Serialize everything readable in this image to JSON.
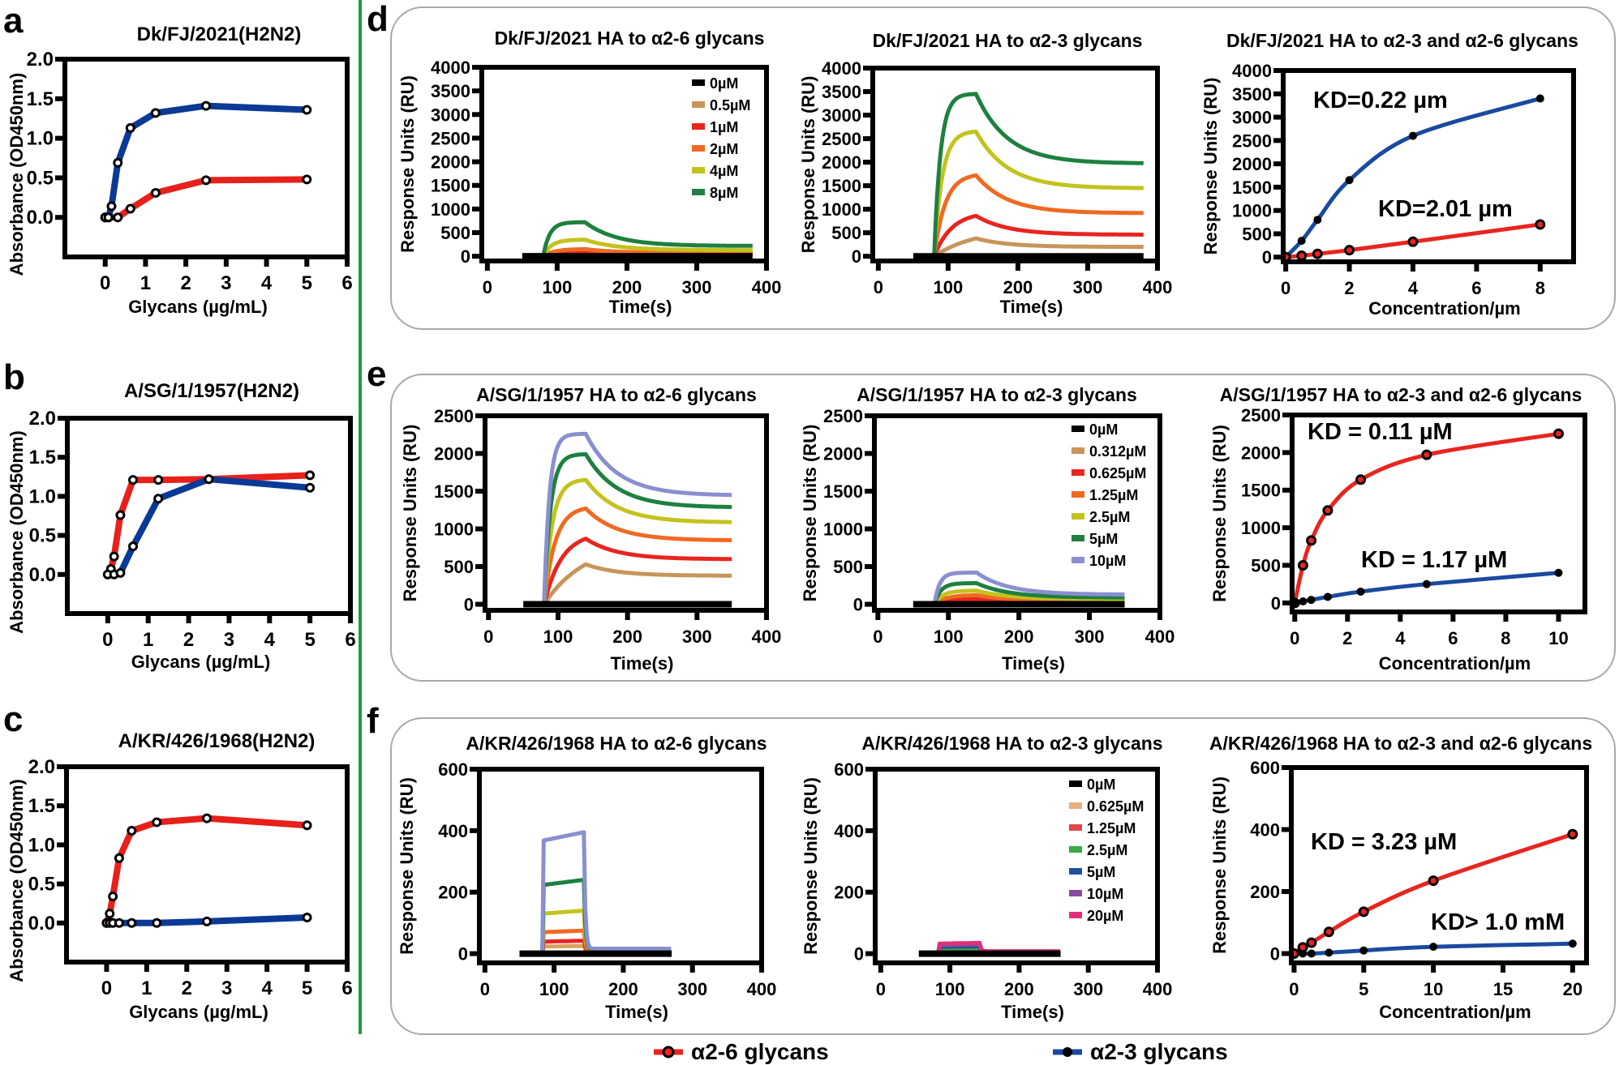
{
  "panel_labels": {
    "a": "a",
    "b": "b",
    "c": "c",
    "d": "d",
    "e": "e",
    "f": "f"
  },
  "legend": {
    "items": [
      {
        "label": "α2-6 glycans",
        "color": "#e8251f"
      },
      {
        "label": "α2-3 glycans",
        "color": "#1a4aa0"
      }
    ]
  },
  "chart_data": [
    {
      "panel": "a",
      "type": "line",
      "title": "Dk/FJ/2021(H2N2)",
      "xlabel": "Glycans (µg/mL)",
      "ylabel": "Absorbance (OD450nm)",
      "xlim": [
        -1,
        6
      ],
      "ylim": [
        -0.5,
        2.0
      ],
      "xticks": [
        "0",
        "1",
        "2",
        "3",
        "4",
        "5",
        "6"
      ],
      "yticks": [
        "0.0",
        "0.5",
        "1.0",
        "1.5",
        "2.0"
      ],
      "series": [
        {
          "glycan": "α2-6",
          "color": "#e8201c",
          "marker": "open",
          "x": [
            0,
            0.078,
            0.3125,
            0.625,
            1.25,
            2.5,
            5
          ],
          "y": [
            0,
            0,
            0,
            0.11,
            0.31,
            0.47,
            0.48
          ]
        },
        {
          "glycan": "α2-3",
          "color": "#0a3a96",
          "marker": "open",
          "x": [
            0,
            0.078,
            0.156,
            0.3125,
            0.625,
            1.25,
            2.5,
            5
          ],
          "y": [
            0,
            0,
            0.14,
            0.69,
            1.13,
            1.32,
            1.41,
            1.36
          ]
        }
      ]
    },
    {
      "panel": "b",
      "type": "line",
      "title": "A/SG/1/1957(H2N2)",
      "xlabel": "Glycans (µg/mL)",
      "ylabel": "Absorbance (OD450nm)",
      "xlim": [
        -1,
        6
      ],
      "ylim": [
        -0.5,
        2.0
      ],
      "xticks": [
        "0",
        "1",
        "2",
        "3",
        "4",
        "5",
        "6"
      ],
      "yticks": [
        "0.0",
        "0.5",
        "1.0",
        "1.5",
        "2.0"
      ],
      "series": [
        {
          "glycan": "α2-6",
          "color": "#e8201c",
          "marker": "open",
          "x": [
            0,
            0.078,
            0.156,
            0.3125,
            0.625,
            1.25,
            2.5,
            5
          ],
          "y": [
            0,
            0.07,
            0.23,
            0.76,
            1.21,
            1.21,
            1.22,
            1.27
          ]
        },
        {
          "glycan": "α2-3",
          "color": "#0a3a96",
          "marker": "open",
          "x": [
            0,
            0.156,
            0.3125,
            0.625,
            1.25,
            2.5,
            5
          ],
          "y": [
            0,
            0,
            0.02,
            0.36,
            0.97,
            1.22,
            1.11
          ]
        }
      ]
    },
    {
      "panel": "c",
      "type": "line",
      "title": "A/KR/426/1968(H2N2)",
      "xlabel": "Glycans (µg/mL)",
      "ylabel": "Absorbance (OD450nm)",
      "xlim": [
        -1,
        6
      ],
      "ylim": [
        -0.5,
        2.0
      ],
      "xticks": [
        "0",
        "1",
        "2",
        "3",
        "4",
        "5",
        "6"
      ],
      "yticks": [
        "0.0",
        "0.5",
        "1.0",
        "1.5",
        "2.0"
      ],
      "series": [
        {
          "glycan": "α2-6",
          "color": "#e8201c",
          "marker": "open",
          "x": [
            0,
            0.078,
            0.156,
            0.3125,
            0.625,
            1.25,
            2.5,
            5
          ],
          "y": [
            0,
            0.12,
            0.34,
            0.83,
            1.18,
            1.29,
            1.34,
            1.25
          ]
        },
        {
          "glycan": "α2-3",
          "color": "#0a3a96",
          "marker": "open",
          "x": [
            0,
            0.078,
            0.156,
            0.3125,
            0.625,
            1.25,
            2.5,
            5
          ],
          "y": [
            0,
            0,
            0,
            0,
            0,
            0,
            0.02,
            0.07
          ]
        }
      ]
    },
    {
      "panel": "d",
      "type": "line",
      "title": "Dk/FJ/2021 HA to α2-6 glycans",
      "xlabel": "Time(s)",
      "ylabel": "Response Units (RU)",
      "xlim": [
        -8,
        400
      ],
      "ylim": [
        -100,
        4000
      ],
      "xticks": [
        "0",
        "100",
        "200",
        "300",
        "400"
      ],
      "yticks": [
        "0",
        "500",
        "1000",
        "1500",
        "2000",
        "2500",
        "3000",
        "3500",
        "4000"
      ],
      "baseline_start_s": 50,
      "injection_start_s": 80,
      "injection_end_s": 140,
      "end_s": 380,
      "kinetics": "exponential",
      "series": [
        {
          "name": "0µM",
          "color": "#000000",
          "peak_RU": 0,
          "final_RU": 0
        },
        {
          "name": "0.5µM",
          "color": "#c8955a",
          "peak_RU": 60,
          "final_RU": 30
        },
        {
          "name": "1µM",
          "color": "#e8251f",
          "peak_RU": 100,
          "final_RU": 50
        },
        {
          "name": "2µM",
          "color": "#f06a22",
          "peak_RU": 150,
          "final_RU": 70
        },
        {
          "name": "4µM",
          "color": "#c4c21e",
          "peak_RU": 350,
          "final_RU": 130
        },
        {
          "name": "8µM",
          "color": "#1e8040",
          "peak_RU": 720,
          "final_RU": 220
        }
      ]
    },
    {
      "panel": "d",
      "type": "line",
      "title": "Dk/FJ/2021 HA to α2-3 glycans",
      "xlabel": "Time(s)",
      "ylabel": "Response Units (RU)",
      "xlim": [
        -8,
        400
      ],
      "ylim": [
        -100,
        4000
      ],
      "xticks": [
        "0",
        "100",
        "200",
        "300",
        "400"
      ],
      "yticks": [
        "0",
        "500",
        "1000",
        "1500",
        "2000",
        "2500",
        "3000",
        "3500",
        "4000"
      ],
      "baseline_start_s": 50,
      "injection_start_s": 80,
      "injection_end_s": 140,
      "end_s": 380,
      "kinetics": "exponential",
      "series": [
        {
          "color": "#000000",
          "peak_RU": 0,
          "final_RU": 0
        },
        {
          "color": "#c8955a",
          "peak_RU": 380,
          "final_RU": 200
        },
        {
          "color": "#e8251f",
          "peak_RU": 860,
          "final_RU": 460
        },
        {
          "color": "#f06a22",
          "peak_RU": 1720,
          "final_RU": 920
        },
        {
          "color": "#c4c21e",
          "peak_RU": 2650,
          "final_RU": 1450
        },
        {
          "color": "#1e8040",
          "peak_RU": 3450,
          "final_RU": 1980
        }
      ]
    },
    {
      "panel": "d",
      "type": "scatter",
      "title": "Dk/FJ/2021 HA to α2-3 and α2-6 glycans",
      "xlabel": "Concentration/µm",
      "ylabel": "Response Units (RU)",
      "xlim": [
        -0.08,
        9.05
      ],
      "ylim": [
        -100,
        4000
      ],
      "xticks": [
        "0",
        "2",
        "4",
        "6",
        "8"
      ],
      "yticks": [
        "0",
        "500",
        "1000",
        "1500",
        "2000",
        "2500",
        "3000",
        "3500",
        "4000"
      ],
      "series": [
        {
          "glycan": "α2-3",
          "color": "#1a4aa0",
          "marker": "filled",
          "x": [
            0,
            0.5,
            1,
            2,
            4,
            8
          ],
          "y": [
            0,
            350,
            800,
            1650,
            2600,
            3400
          ]
        },
        {
          "glycan": "α2-6",
          "color": "#e8251f",
          "marker": "open",
          "x": [
            0,
            0.5,
            1,
            2,
            4,
            8
          ],
          "y": [
            0,
            30,
            70,
            150,
            330,
            700
          ]
        }
      ],
      "annotations": [
        {
          "text": "KD=0.22 µm",
          "color": "#1a4aa0"
        },
        {
          "text": "KD=2.01 µm",
          "color": "#e8251f"
        }
      ]
    },
    {
      "panel": "e",
      "type": "line",
      "title": "A/SG/1/1957 HA to α2-6 glycans",
      "xlabel": "Time(s)",
      "ylabel": "Response Units (RU)",
      "xlim": [
        -5,
        400
      ],
      "ylim": [
        -80,
        2500
      ],
      "xticks": [
        "0",
        "100",
        "200",
        "300",
        "400"
      ],
      "yticks": [
        "0",
        "500",
        "1000",
        "1500",
        "2000",
        "2500"
      ],
      "baseline_start_s": 50,
      "injection_start_s": 80,
      "injection_end_s": 140,
      "end_s": 350,
      "kinetics": "exponential",
      "series": [
        {
          "color": "#000000",
          "peak_RU": 0,
          "final_RU": 0
        },
        {
          "color": "#c8955a",
          "peak_RU": 530,
          "final_RU": 380
        },
        {
          "color": "#e8251f",
          "peak_RU": 870,
          "final_RU": 600
        },
        {
          "color": "#f06a22",
          "peak_RU": 1270,
          "final_RU": 850
        },
        {
          "color": "#c4c21e",
          "peak_RU": 1650,
          "final_RU": 1090
        },
        {
          "color": "#1e8040",
          "peak_RU": 1990,
          "final_RU": 1290
        },
        {
          "color": "#8a8fd0",
          "peak_RU": 2260,
          "final_RU": 1450
        }
      ]
    },
    {
      "panel": "e",
      "type": "line",
      "title": "A/SG/1/1957 HA to α2-3 glycans",
      "xlabel": "Time(s)",
      "ylabel": "Response Units (RU)",
      "xlim": [
        -5,
        400
      ],
      "ylim": [
        -80,
        2500
      ],
      "xticks": [
        "0",
        "100",
        "200",
        "300",
        "400"
      ],
      "yticks": [
        "0",
        "500",
        "1000",
        "1500",
        "2000",
        "2500"
      ],
      "baseline_start_s": 50,
      "injection_start_s": 80,
      "injection_end_s": 140,
      "end_s": 350,
      "kinetics": "exponential",
      "series": [
        {
          "name": "0µM",
          "color": "#000000",
          "peak_RU": 0,
          "final_RU": 0
        },
        {
          "name": "0.312µM",
          "color": "#c8955a",
          "peak_RU": 40,
          "final_RU": 30
        },
        {
          "name": "0.625µM",
          "color": "#e8251f",
          "peak_RU": 70,
          "final_RU": 40
        },
        {
          "name": "1.25µM",
          "color": "#f06a22",
          "peak_RU": 120,
          "final_RU": 50
        },
        {
          "name": "2.5µM",
          "color": "#c4c21e",
          "peak_RU": 180,
          "final_RU": 70
        },
        {
          "name": "5µM",
          "color": "#1e8040",
          "peak_RU": 280,
          "final_RU": 90
        },
        {
          "name": "10µM",
          "color": "#8a8fd0",
          "peak_RU": 420,
          "final_RU": 130
        }
      ]
    },
    {
      "panel": "e",
      "type": "scatter",
      "title": "A/SG/1/1957 HA to α2-3 and α2-6 glycans",
      "xlabel": "Concentration/µm",
      "ylabel": "Response Units (RU)",
      "xlim": [
        -0.1,
        11
      ],
      "ylim": [
        -120,
        2500
      ],
      "xticks": [
        "0",
        "2",
        "4",
        "6",
        "8",
        "10"
      ],
      "yticks": [
        "0",
        "500",
        "1000",
        "1500",
        "2000",
        "2500"
      ],
      "series": [
        {
          "glycan": "α2-6",
          "color": "#e8251f",
          "marker": "open",
          "x": [
            0,
            0.3125,
            0.625,
            1.25,
            2.5,
            5,
            10
          ],
          "y": [
            0,
            500,
            830,
            1230,
            1640,
            1970,
            2250
          ]
        },
        {
          "glycan": "α2-3",
          "color": "#1a4aa0",
          "marker": "filled",
          "x": [
            0,
            0.3125,
            0.625,
            1.25,
            2.5,
            5,
            10
          ],
          "y": [
            0,
            20,
            40,
            80,
            150,
            250,
            400
          ]
        }
      ],
      "annotations": [
        {
          "text": "KD = 0.11 µM",
          "color": "#e8251f"
        },
        {
          "text": "KD = 1.17 µM",
          "color": "#1a4aa0"
        }
      ]
    },
    {
      "panel": "f",
      "type": "line",
      "title": "A/KR/426/1968 HA to α2-6 glycans",
      "xlabel": "Time(s)",
      "ylabel": "Response Units (RU)",
      "xlim": [
        -8,
        400
      ],
      "ylim": [
        -30,
        600
      ],
      "xticks": [
        "0",
        "100",
        "200",
        "300",
        "400"
      ],
      "yticks": [
        "0",
        "200",
        "400",
        "600"
      ],
      "baseline_start_s": 50,
      "injection_start_s": 83,
      "injection_end_s": 143,
      "end_s": 270,
      "kinetics": "square",
      "series": [
        {
          "color": "#000000",
          "peak_RU": 0,
          "final_RU": 0
        },
        {
          "color": "#d9a25e",
          "peak_RU": 25,
          "final_RU": 8
        },
        {
          "color": "#e8251f",
          "peak_RU": 42,
          "final_RU": 10
        },
        {
          "color": "#f06a22",
          "peak_RU": 75,
          "final_RU": 12
        },
        {
          "color": "#c8c21e",
          "peak_RU": 140,
          "final_RU": 14
        },
        {
          "color": "#1e8040",
          "peak_RU": 240,
          "final_RU": 15
        },
        {
          "color": "#8a8fd0",
          "peak_RU": 395,
          "final_RU": 16
        }
      ]
    },
    {
      "panel": "f",
      "type": "line",
      "title": "A/KR/426/1968 HA to α2-3 glycans",
      "xlabel": "Time(s)",
      "ylabel": "Response Units (RU)",
      "xlim": [
        -8,
        400
      ],
      "ylim": [
        -30,
        600
      ],
      "xticks": [
        "0",
        "100",
        "200",
        "300",
        "400"
      ],
      "yticks": [
        "0",
        "200",
        "400",
        "600"
      ],
      "baseline_start_s": 55,
      "injection_start_s": 83,
      "injection_end_s": 143,
      "end_s": 260,
      "kinetics": "square",
      "series": [
        {
          "name": "0µM",
          "color": "#000000",
          "peak_RU": 0,
          "final_RU": 0
        },
        {
          "name": "0.625µM",
          "color": "#e6b07e",
          "peak_RU": 4,
          "final_RU": 2
        },
        {
          "name": "1.25µM",
          "color": "#e04848",
          "peak_RU": 8,
          "final_RU": 3
        },
        {
          "name": "2.5µM",
          "color": "#3aa844",
          "peak_RU": 18,
          "final_RU": 5
        },
        {
          "name": "5µM",
          "color": "#2050a0",
          "peak_RU": 24,
          "final_RU": 6
        },
        {
          "name": "10µM",
          "color": "#8a4aa0",
          "peak_RU": 30,
          "final_RU": 7
        },
        {
          "name": "20µM",
          "color": "#e0307a",
          "peak_RU": 35,
          "final_RU": 8
        }
      ]
    },
    {
      "panel": "f",
      "type": "scatter",
      "title": "A/KR/426/1968 HA to α2-3 and α2-6 glycans",
      "xlabel": "Concentration/µm",
      "ylabel": "Response Units (RU)",
      "xlim": [
        -0.2,
        21
      ],
      "ylim": [
        -30,
        600
      ],
      "xticks": [
        "0",
        "5",
        "10",
        "15",
        "20"
      ],
      "yticks": [
        "0",
        "200",
        "400",
        "600"
      ],
      "series": [
        {
          "glycan": "α2-3",
          "color": "#1a4aa0",
          "marker": "filled",
          "x": [
            0,
            0.625,
            1.25,
            2.5,
            5,
            10,
            20
          ],
          "y": [
            0,
            0,
            0,
            3,
            10,
            22,
            32
          ]
        },
        {
          "glycan": "α2-6",
          "color": "#e8251f",
          "marker": "open",
          "x": [
            0,
            0.625,
            1.25,
            2.5,
            5,
            10,
            20
          ],
          "y": [
            0,
            20,
            35,
            70,
            135,
            235,
            385
          ]
        }
      ],
      "annotations": [
        {
          "text": "KD = 3.23 µM",
          "color": "#e8251f"
        },
        {
          "text": "KD> 1.0 mM",
          "color": "#1a4aa0"
        }
      ]
    }
  ]
}
